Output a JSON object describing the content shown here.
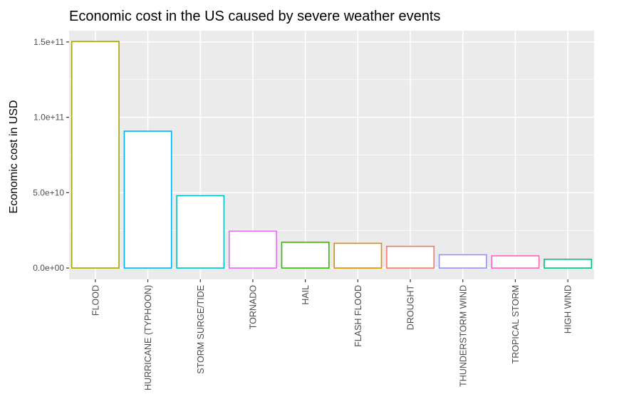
{
  "chart_data": {
    "type": "bar",
    "title": "Economic cost in the US caused by severe weather events",
    "xlabel": "",
    "ylabel": "Economic cost in USD",
    "categories": [
      "FLOOD",
      "HURRICANE (TYPHOON)",
      "STORM SURGE/TIDE",
      "TORNADO",
      "HAIL",
      "FLASH FLOOD",
      "DROUGHT",
      "THUNDERSTORM WIND",
      "TROPICAL STORM",
      "HIGH WIND"
    ],
    "values": [
      150300000000,
      90800000000,
      48000000000,
      24500000000,
      17100000000,
      16400000000,
      14400000000,
      8800000000,
      8100000000,
      5800000000
    ],
    "colors": [
      "#A3A500",
      "#00B0F6",
      "#00BFC4",
      "#E76BF3",
      "#39B600",
      "#D89000",
      "#F8766D",
      "#9590FF",
      "#FF62BC",
      "#00BF7D"
    ],
    "ylim": [
      -7500000000,
      157500000000
    ],
    "yticks": [
      0,
      50000000000,
      100000000000,
      150000000000
    ],
    "ytick_labels": [
      "0.0e+00",
      "5.0e+10",
      "1.0e+11",
      "1.5e+11"
    ],
    "grid": true,
    "legend": "none"
  }
}
